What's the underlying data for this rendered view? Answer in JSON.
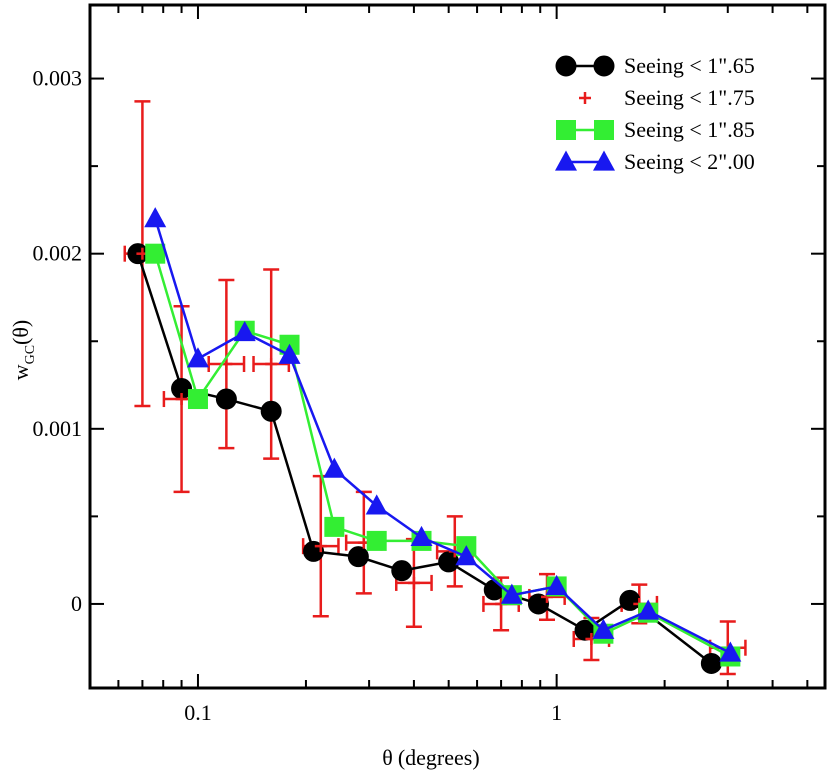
{
  "chart_data": {
    "type": "line",
    "xscale": "log",
    "xlim": [
      0.05,
      5.6
    ],
    "ylim": [
      -0.00048,
      0.00342
    ],
    "xlabel_symbol": "θ",
    "xlabel_units": "(degrees)",
    "ylabel_base": "w",
    "ylabel_sub": "GC",
    "ylabel_arg": "(θ)",
    "x_ticks": [
      {
        "value": 0.1,
        "label": "0.1"
      },
      {
        "value": 1,
        "label": "1"
      }
    ],
    "y_ticks": [
      {
        "value": 0,
        "label": "0"
      },
      {
        "value": 0.001,
        "label": "0.001"
      },
      {
        "value": 0.002,
        "label": "0.002"
      },
      {
        "value": 0.003,
        "label": "0.003"
      }
    ],
    "series": [
      {
        "name": "Seeing < 1\".65",
        "color": "#000000",
        "marker": "circle",
        "line": true,
        "x": [
          0.068,
          0.09,
          0.12,
          0.16,
          0.21,
          0.28,
          0.37,
          0.5,
          0.67,
          0.89,
          1.2,
          1.6,
          2.7
        ],
        "y": [
          0.002,
          0.00123,
          0.00117,
          0.0011,
          0.0003,
          0.00027,
          0.00019,
          0.00024,
          8e-05,
          0.0,
          -0.00015,
          2e-05,
          -0.00034
        ]
      },
      {
        "name": "Seeing < 1\".75",
        "color": "#e81c1c",
        "marker": "plus",
        "line": false,
        "x": [
          0.07,
          0.09,
          0.12,
          0.16,
          0.22,
          0.29,
          0.4,
          0.52,
          0.7,
          0.94,
          1.25,
          1.7,
          3.0
        ],
        "y": [
          0.002,
          0.00117,
          0.00137,
          0.00137,
          0.00033,
          0.00035,
          0.00012,
          0.0003,
          0.0,
          4e-05,
          -0.0002,
          0.0,
          -0.00025
        ],
        "yerr": [
          0.00087,
          0.00053,
          0.00048,
          0.00054,
          0.0004,
          0.00029,
          0.00025,
          0.0002,
          0.00015,
          0.00013,
          0.00012,
          0.00011,
          0.00015
        ],
        "xerr_factor": 1.12
      },
      {
        "name": "Seeing < 1\".85",
        "color": "#33ee33",
        "marker": "square",
        "line": true,
        "x": [
          0.076,
          0.1,
          0.135,
          0.18,
          0.24,
          0.315,
          0.42,
          0.56,
          0.75,
          1.0,
          1.35,
          1.8,
          3.05
        ],
        "y": [
          0.002,
          0.00117,
          0.00156,
          0.00148,
          0.00044,
          0.00036,
          0.00036,
          0.00033,
          5e-05,
          0.0001,
          -0.00017,
          -5e-05,
          -0.0003
        ]
      },
      {
        "name": "Seeing < 2\".00",
        "color": "#1818f0",
        "marker": "triangle",
        "line": true,
        "x": [
          0.076,
          0.1,
          0.135,
          0.18,
          0.24,
          0.315,
          0.42,
          0.56,
          0.75,
          1.0,
          1.35,
          1.8,
          3.05
        ],
        "y": [
          0.0022,
          0.0014,
          0.00155,
          0.00142,
          0.00077,
          0.00056,
          0.00038,
          0.00027,
          5e-05,
          0.0001,
          -0.00015,
          -4e-05,
          -0.00028
        ]
      }
    ]
  }
}
